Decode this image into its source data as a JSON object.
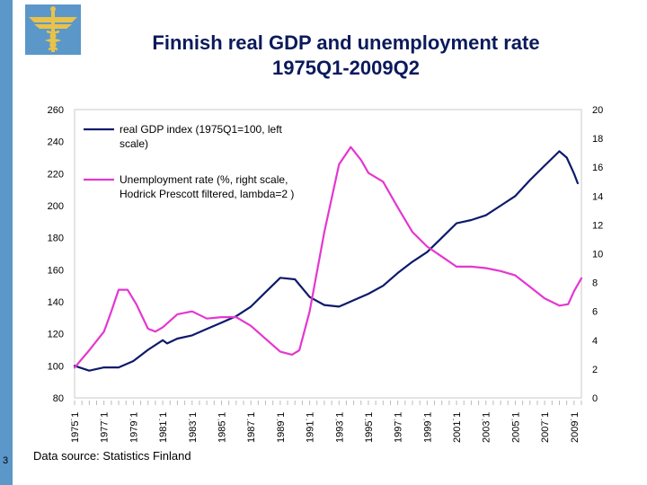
{
  "slide": {
    "title_line1": "Finnish real GDP and unemployment rate",
    "title_line2": "1975Q1-2009Q2",
    "page_number": "3",
    "source": "Data source: Statistics Finland",
    "accent_color": "#5b97c9",
    "title_color": "#0b1a5c"
  },
  "chart_data": {
    "type": "line",
    "title": "Finnish real GDP and unemployment rate 1975Q1-2009Q2",
    "x_ticks": [
      "1975˙1",
      "1977˙1",
      "1979˙1",
      "1981˙1",
      "1983˙1",
      "1985˙1",
      "1987˙1",
      "1989˙1",
      "1991˙1",
      "1993˙1",
      "1995˙1",
      "1997˙1",
      "1999˙1",
      "2001˙1",
      "2003˙1",
      "2005˙1",
      "2007˙1",
      "2009˙1"
    ],
    "y_left": {
      "min": 80,
      "max": 260,
      "ticks": [
        80,
        100,
        120,
        140,
        160,
        180,
        200,
        220,
        240,
        260
      ]
    },
    "y_right": {
      "min": 0,
      "max": 20,
      "ticks": [
        0,
        2,
        4,
        6,
        8,
        10,
        12,
        14,
        16,
        18,
        20
      ]
    },
    "legend": [
      "real GDP index (1975Q1=100, left",
      "scale)",
      "Unemployment rate (%, right scale,",
      "Hodrick Prescott filtered, lambda=2 )"
    ],
    "legend_position": "top-left",
    "grid": false,
    "series": [
      {
        "name": "real GDP index (1975Q1=100, left scale)",
        "axis": "left",
        "color": "#0d1a6b",
        "points": [
          [
            1975.0,
            100
          ],
          [
            1976.0,
            97
          ],
          [
            1977.0,
            99
          ],
          [
            1978.0,
            99
          ],
          [
            1979.0,
            103
          ],
          [
            1980.0,
            110
          ],
          [
            1981.0,
            116
          ],
          [
            1981.3,
            114
          ],
          [
            1982.0,
            117
          ],
          [
            1983.0,
            119
          ],
          [
            1984.0,
            123
          ],
          [
            1985.0,
            127
          ],
          [
            1986.0,
            131
          ],
          [
            1987.0,
            137
          ],
          [
            1988.0,
            146
          ],
          [
            1989.0,
            155
          ],
          [
            1990.0,
            154
          ],
          [
            1991.0,
            143
          ],
          [
            1992.0,
            138
          ],
          [
            1993.0,
            137
          ],
          [
            1994.0,
            141
          ],
          [
            1995.0,
            145
          ],
          [
            1996.0,
            150
          ],
          [
            1997.0,
            158
          ],
          [
            1998.0,
            165
          ],
          [
            1999.0,
            171
          ],
          [
            2000.0,
            180
          ],
          [
            2001.0,
            189
          ],
          [
            2002.0,
            191
          ],
          [
            2003.0,
            194
          ],
          [
            2004.0,
            200
          ],
          [
            2005.0,
            206
          ],
          [
            2006.0,
            216
          ],
          [
            2007.0,
            225
          ],
          [
            2008.0,
            234
          ],
          [
            2008.5,
            230
          ],
          [
            2009.0,
            220
          ],
          [
            2009.25,
            214
          ]
        ]
      },
      {
        "name": "Unemployment rate (%, right scale, Hodrick Prescott filtered, lambda=2 )",
        "axis": "right",
        "color": "#e437cf",
        "points": [
          [
            1975.0,
            2.1
          ],
          [
            1976.0,
            3.3
          ],
          [
            1977.0,
            4.6
          ],
          [
            1977.5,
            6.0
          ],
          [
            1978.0,
            7.5
          ],
          [
            1978.6,
            7.5
          ],
          [
            1979.2,
            6.5
          ],
          [
            1980.0,
            4.8
          ],
          [
            1980.5,
            4.6
          ],
          [
            1981.0,
            4.9
          ],
          [
            1982.0,
            5.8
          ],
          [
            1983.0,
            6.0
          ],
          [
            1984.0,
            5.5
          ],
          [
            1985.0,
            5.6
          ],
          [
            1986.0,
            5.6
          ],
          [
            1987.0,
            5.0
          ],
          [
            1988.0,
            4.1
          ],
          [
            1989.0,
            3.2
          ],
          [
            1989.8,
            3.0
          ],
          [
            1990.3,
            3.3
          ],
          [
            1991.0,
            6.0
          ],
          [
            1992.0,
            11.5
          ],
          [
            1993.0,
            16.2
          ],
          [
            1993.8,
            17.4
          ],
          [
            1994.5,
            16.5
          ],
          [
            1995.0,
            15.6
          ],
          [
            1996.0,
            15.0
          ],
          [
            1997.0,
            13.2
          ],
          [
            1998.0,
            11.5
          ],
          [
            1999.0,
            10.5
          ],
          [
            2000.0,
            9.8
          ],
          [
            2001.0,
            9.1
          ],
          [
            2002.0,
            9.1
          ],
          [
            2003.0,
            9.0
          ],
          [
            2004.0,
            8.8
          ],
          [
            2005.0,
            8.5
          ],
          [
            2006.0,
            7.7
          ],
          [
            2007.0,
            6.9
          ],
          [
            2008.0,
            6.4
          ],
          [
            2008.6,
            6.5
          ],
          [
            2009.0,
            7.4
          ],
          [
            2009.5,
            8.3
          ]
        ]
      }
    ]
  }
}
